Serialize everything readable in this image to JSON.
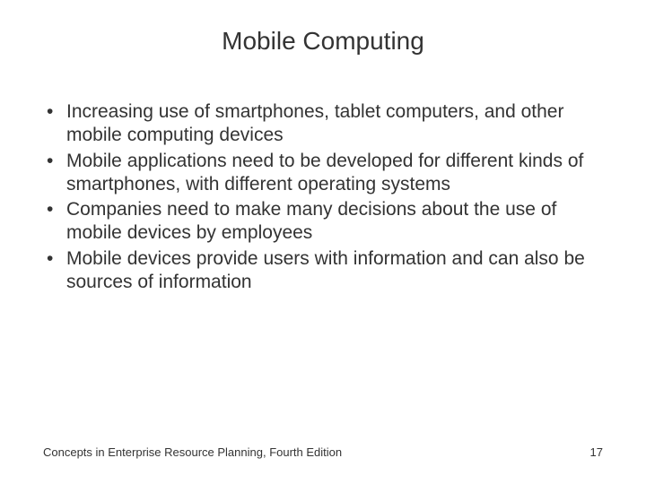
{
  "slide": {
    "title": "Mobile Computing",
    "bullets": [
      "Increasing use of smartphones, tablet computers, and other mobile computing devices",
      "Mobile applications need to be developed for different kinds of smartphones, with different operating systems",
      "Companies need to make many decisions about the use of mobile devices by employees",
      "Mobile devices provide users with information and can also be sources of information"
    ],
    "footer_text": "Concepts in Enterprise Resource Planning, Fourth Edition",
    "page_number": "17"
  },
  "styling": {
    "background_color": "#ffffff",
    "title_color": "#333333",
    "title_fontsize": 28,
    "body_color": "#333333",
    "body_fontsize": 21,
    "footer_fontsize": 13,
    "font_family": "Arial"
  }
}
